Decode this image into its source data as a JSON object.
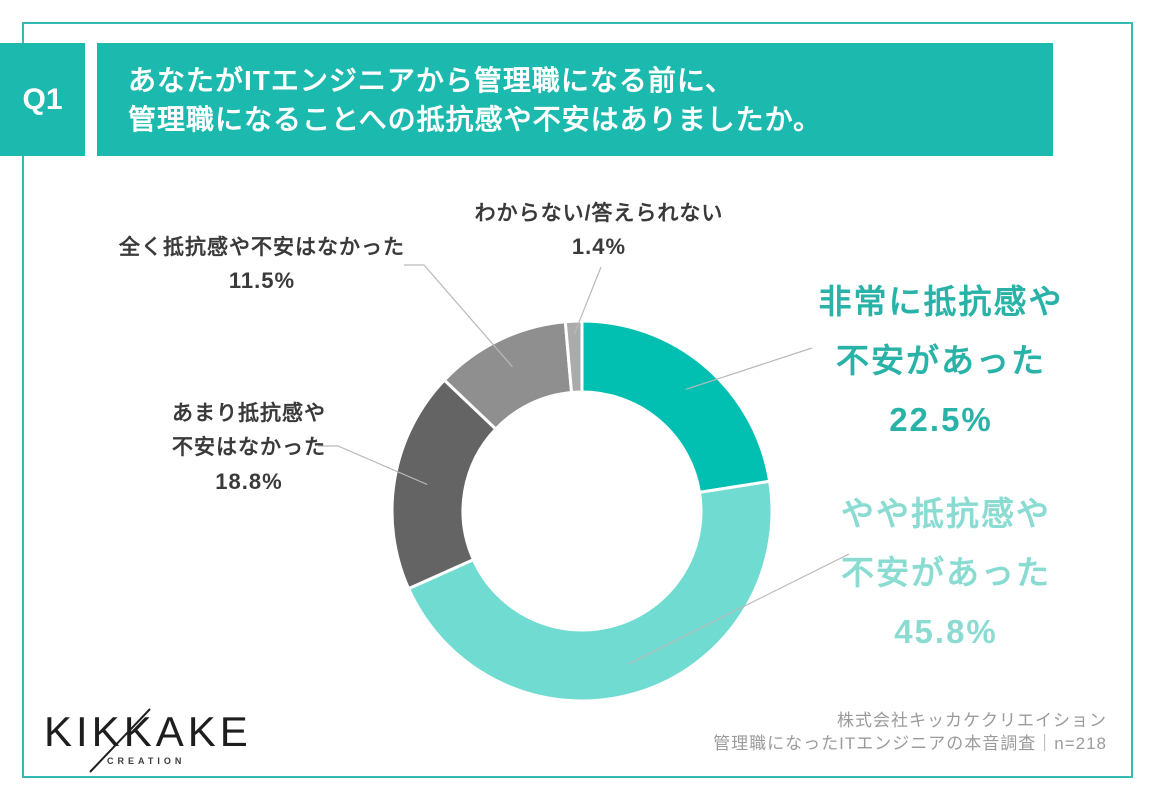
{
  "header": {
    "tag": "Q1",
    "title_line1": "あなたがITエンジニアから管理職になる前に、",
    "title_line2": "管理職になることへの抵抗感や不安はありましたか。",
    "bg_color": "#1cb9ae",
    "frame_color": "#35bcb2"
  },
  "chart_data": {
    "type": "pie",
    "subtype": "donut",
    "title": "あなたがITエンジニアから管理職になる前に、管理職になることへの抵抗感や不安はありましたか。",
    "start_angle_deg": -90,
    "direction": "clockwise",
    "unit": "%",
    "n": 218,
    "categories": [
      "非常に抵抗感や不安があった",
      "やや抵抗感や不安があった",
      "あまり抵抗感や不安はなかった",
      "全く抵抗感や不安はなかった",
      "わからない/答えられない"
    ],
    "values": [
      22.5,
      45.8,
      18.8,
      11.5,
      1.4
    ],
    "colors": [
      "#02c0b1",
      "#70dbd0",
      "#646464",
      "#8f8f8f",
      "#ababab"
    ],
    "legend_position": "callout-labels",
    "grid": false
  },
  "labels": {
    "very": {
      "line1": "非常に抵抗感や",
      "line2": "不安があった",
      "pct": "22.5%",
      "color": "#29b2a7"
    },
    "somewhat": {
      "line1": "やや抵抗感や",
      "line2": "不安があった",
      "pct": "45.8%",
      "color": "#8adcd2"
    },
    "not_much": {
      "line1": "あまり抵抗感や",
      "line2": "不安はなかった",
      "pct": "18.8%"
    },
    "none_at_all": {
      "line1": "全く抵抗感や不安はなかった",
      "pct": "11.5%"
    },
    "dont_know": {
      "line1": "わからない/答えられない",
      "pct": "1.4%"
    }
  },
  "footer": {
    "logo_text": "KIKKAKE",
    "logo_subtext": "CREATION",
    "credit_line1": "株式会社キッカケクリエイション",
    "credit_line2": "管理職になったITエンジニアの本音調査｜n=218"
  }
}
